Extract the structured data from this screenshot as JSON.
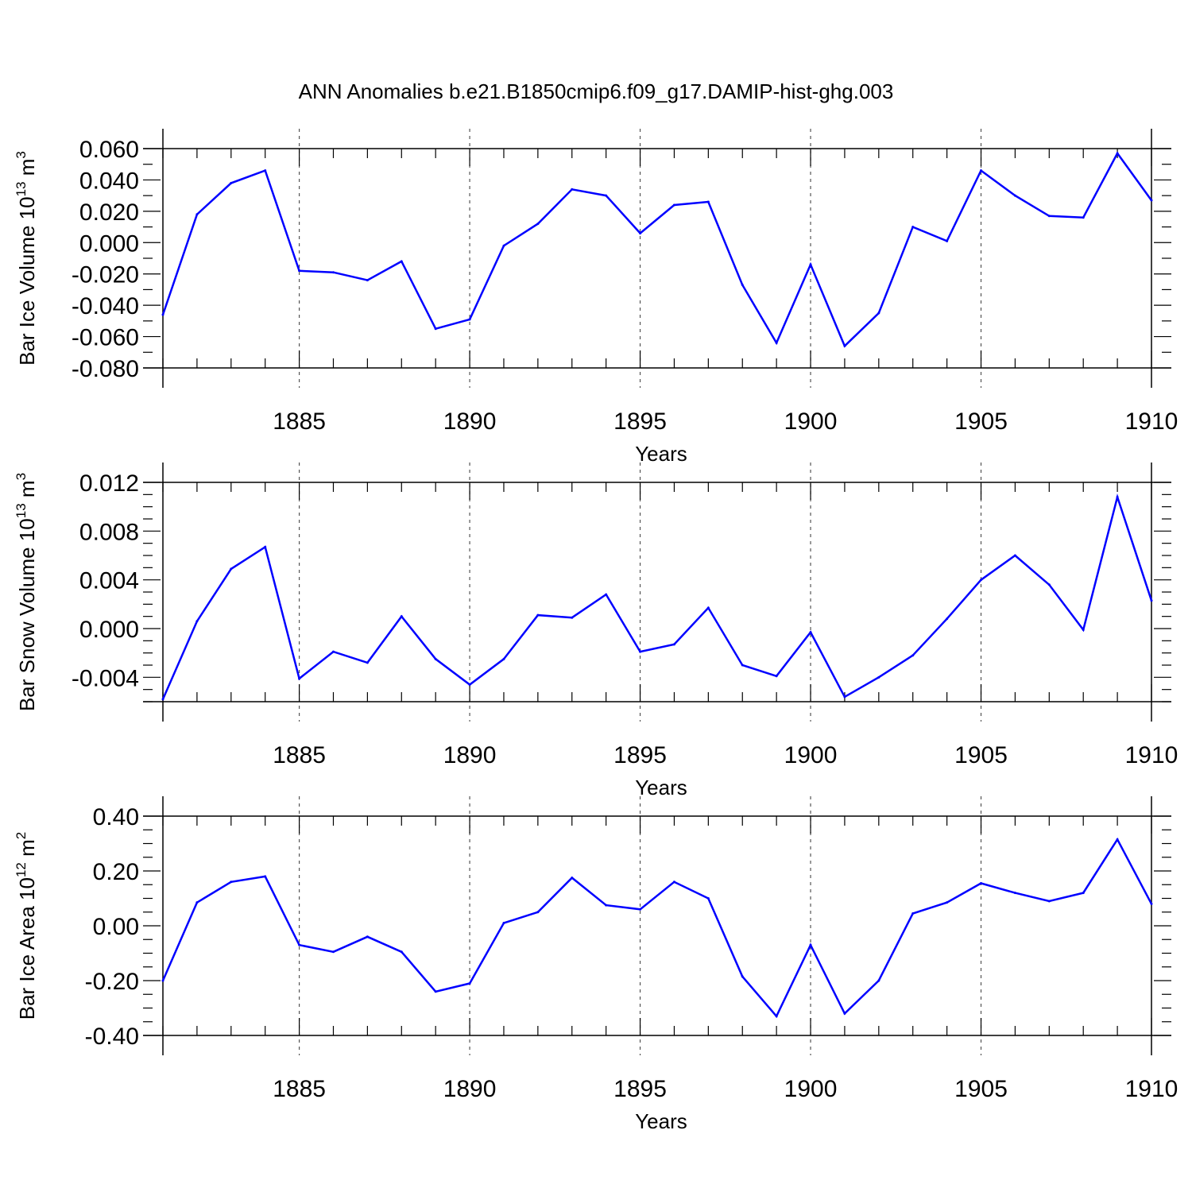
{
  "figure_title": "ANN Anomalies b.e21.B1850cmip6.f09_g17.DAMIP-hist-ghg.003",
  "chart_data": [
    {
      "type": "line",
      "name": "ice-volume",
      "ylabel": "Bar Ice Volume 10",
      "ylabel_exp": "13",
      "ylabel_unit": " m",
      "ylabel_unit_exp": "3",
      "xlabel": "Years",
      "xlim": [
        1881,
        1910
      ],
      "ylim": [
        -0.08,
        0.06
      ],
      "ytick_values": [
        0.06,
        0.04,
        0.02,
        0.0,
        -0.02,
        -0.04,
        -0.06,
        -0.08
      ],
      "ytick_labels": [
        "0.060",
        "0.040",
        "0.020",
        "0.000",
        "-0.020",
        "-0.040",
        "-0.060",
        "-0.080"
      ],
      "xtick_values": [
        1885,
        1890,
        1895,
        1900,
        1905,
        1910
      ],
      "xtick_labels": [
        "1885",
        "1890",
        "1895",
        "1900",
        "1905",
        "1910"
      ],
      "x": [
        1881,
        1882,
        1883,
        1884,
        1885,
        1886,
        1887,
        1888,
        1889,
        1890,
        1891,
        1892,
        1893,
        1894,
        1895,
        1896,
        1897,
        1898,
        1899,
        1900,
        1901,
        1902,
        1903,
        1904,
        1905,
        1906,
        1907,
        1908,
        1909,
        1910
      ],
      "values": [
        -0.046,
        0.018,
        0.038,
        0.046,
        -0.018,
        -0.019,
        -0.024,
        -0.012,
        -0.055,
        -0.049,
        -0.002,
        0.012,
        0.034,
        0.03,
        0.006,
        0.024,
        0.026,
        -0.027,
        -0.064,
        -0.014,
        -0.066,
        -0.045,
        0.01,
        0.001,
        0.046,
        0.03,
        0.017,
        0.016,
        0.057,
        0.027
      ],
      "color": "#0000ff"
    },
    {
      "type": "line",
      "name": "snow-volume",
      "ylabel": "Bar Snow Volume 10",
      "ylabel_exp": "13",
      "ylabel_unit": " m",
      "ylabel_unit_exp": "3",
      "xlabel": "Years",
      "xlim": [
        1881,
        1910
      ],
      "ylim": [
        -0.006,
        0.012
      ],
      "ytick_values": [
        0.012,
        0.008,
        0.004,
        0.0,
        -0.004
      ],
      "ytick_labels": [
        "0.012",
        "0.008",
        "0.004",
        "0.000",
        "-0.004"
      ],
      "xtick_values": [
        1885,
        1890,
        1895,
        1900,
        1905,
        1910
      ],
      "xtick_labels": [
        "1885",
        "1890",
        "1895",
        "1900",
        "1905",
        "1910"
      ],
      "x": [
        1881,
        1882,
        1883,
        1884,
        1885,
        1886,
        1887,
        1888,
        1889,
        1890,
        1891,
        1892,
        1893,
        1894,
        1895,
        1896,
        1897,
        1898,
        1899,
        1900,
        1901,
        1902,
        1903,
        1904,
        1905,
        1906,
        1907,
        1908,
        1909,
        1910
      ],
      "values": [
        -0.0058,
        0.0006,
        0.0049,
        0.0067,
        -0.0041,
        -0.0019,
        -0.0028,
        0.001,
        -0.0025,
        -0.0046,
        -0.0025,
        0.0011,
        0.0009,
        0.0028,
        -0.0019,
        -0.0013,
        0.0017,
        -0.003,
        -0.0039,
        -0.0003,
        -0.0056,
        -0.004,
        -0.0022,
        0.0008,
        0.004,
        0.006,
        0.0036,
        -0.0001,
        0.0108,
        0.0023
      ],
      "color": "#0000ff"
    },
    {
      "type": "line",
      "name": "ice-area",
      "ylabel": "Bar Ice Area 10",
      "ylabel_exp": "12",
      "ylabel_unit": " m",
      "ylabel_unit_exp": "2",
      "xlabel": "Years",
      "xlim": [
        1881,
        1910
      ],
      "ylim": [
        -0.4,
        0.4
      ],
      "ytick_values": [
        0.4,
        0.2,
        0.0,
        -0.2,
        -0.4
      ],
      "ytick_labels": [
        "0.40",
        "0.20",
        "0.00",
        "-0.20",
        "-0.40"
      ],
      "xtick_values": [
        1885,
        1890,
        1895,
        1900,
        1905,
        1910
      ],
      "xtick_labels": [
        "1885",
        "1890",
        "1895",
        "1900",
        "1905",
        "1910"
      ],
      "x": [
        1881,
        1882,
        1883,
        1884,
        1885,
        1886,
        1887,
        1888,
        1889,
        1890,
        1891,
        1892,
        1893,
        1894,
        1895,
        1896,
        1897,
        1898,
        1899,
        1900,
        1901,
        1902,
        1903,
        1904,
        1905,
        1906,
        1907,
        1908,
        1909,
        1910
      ],
      "values": [
        -0.2,
        0.085,
        0.16,
        0.18,
        -0.07,
        -0.095,
        -0.04,
        -0.095,
        -0.24,
        -0.21,
        0.01,
        0.05,
        0.175,
        0.075,
        0.06,
        0.16,
        0.1,
        -0.185,
        -0.33,
        -0.07,
        -0.32,
        -0.2,
        0.045,
        0.085,
        0.155,
        0.12,
        0.09,
        0.12,
        0.315,
        0.08
      ],
      "color": "#0000ff"
    }
  ]
}
